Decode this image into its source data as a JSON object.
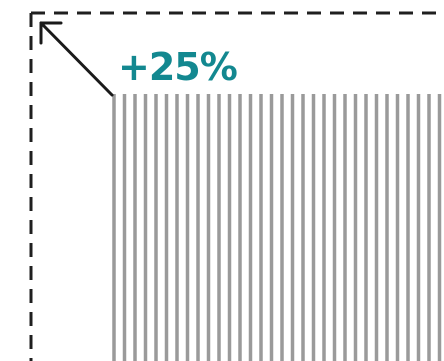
{
  "diagram": {
    "increase_label": "+25%",
    "colors": {
      "label": "#138890",
      "dashed_frame": "#1f1f1f",
      "arrow": "#1a1a1a",
      "stripes": "#9a9a9a",
      "background": "#ffffff"
    },
    "icons": {
      "arrow": "expand-diagonal-arrow-icon"
    }
  }
}
